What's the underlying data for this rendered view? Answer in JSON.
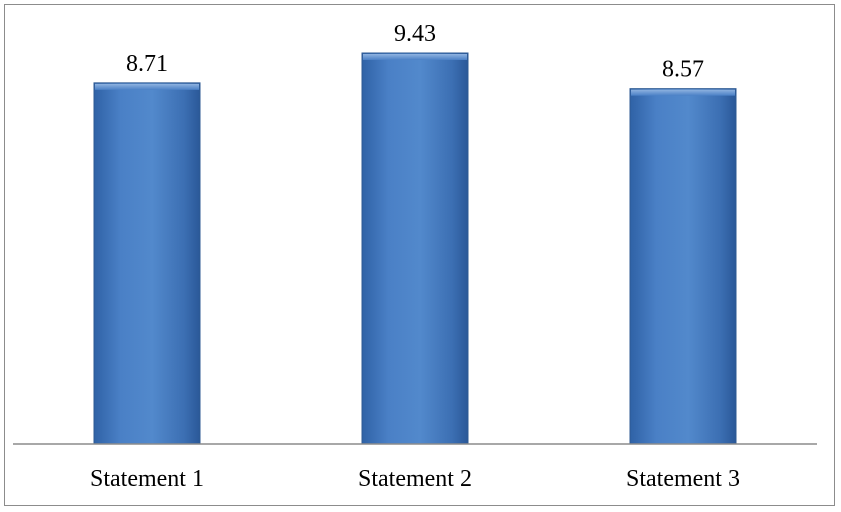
{
  "chart_data": {
    "type": "bar",
    "categories": [
      "Statement 1",
      "Statement 2",
      "Statement 3"
    ],
    "values": [
      8.71,
      9.43,
      8.57
    ],
    "data_labels": [
      "8.71",
      "9.43",
      "8.57"
    ],
    "title": "",
    "xlabel": "",
    "ylabel": "",
    "ylim": [
      0,
      10
    ],
    "grid": false,
    "legend": "none",
    "bar_color": "#4a7ebf",
    "bar_edge_color": "#2e5a93"
  }
}
